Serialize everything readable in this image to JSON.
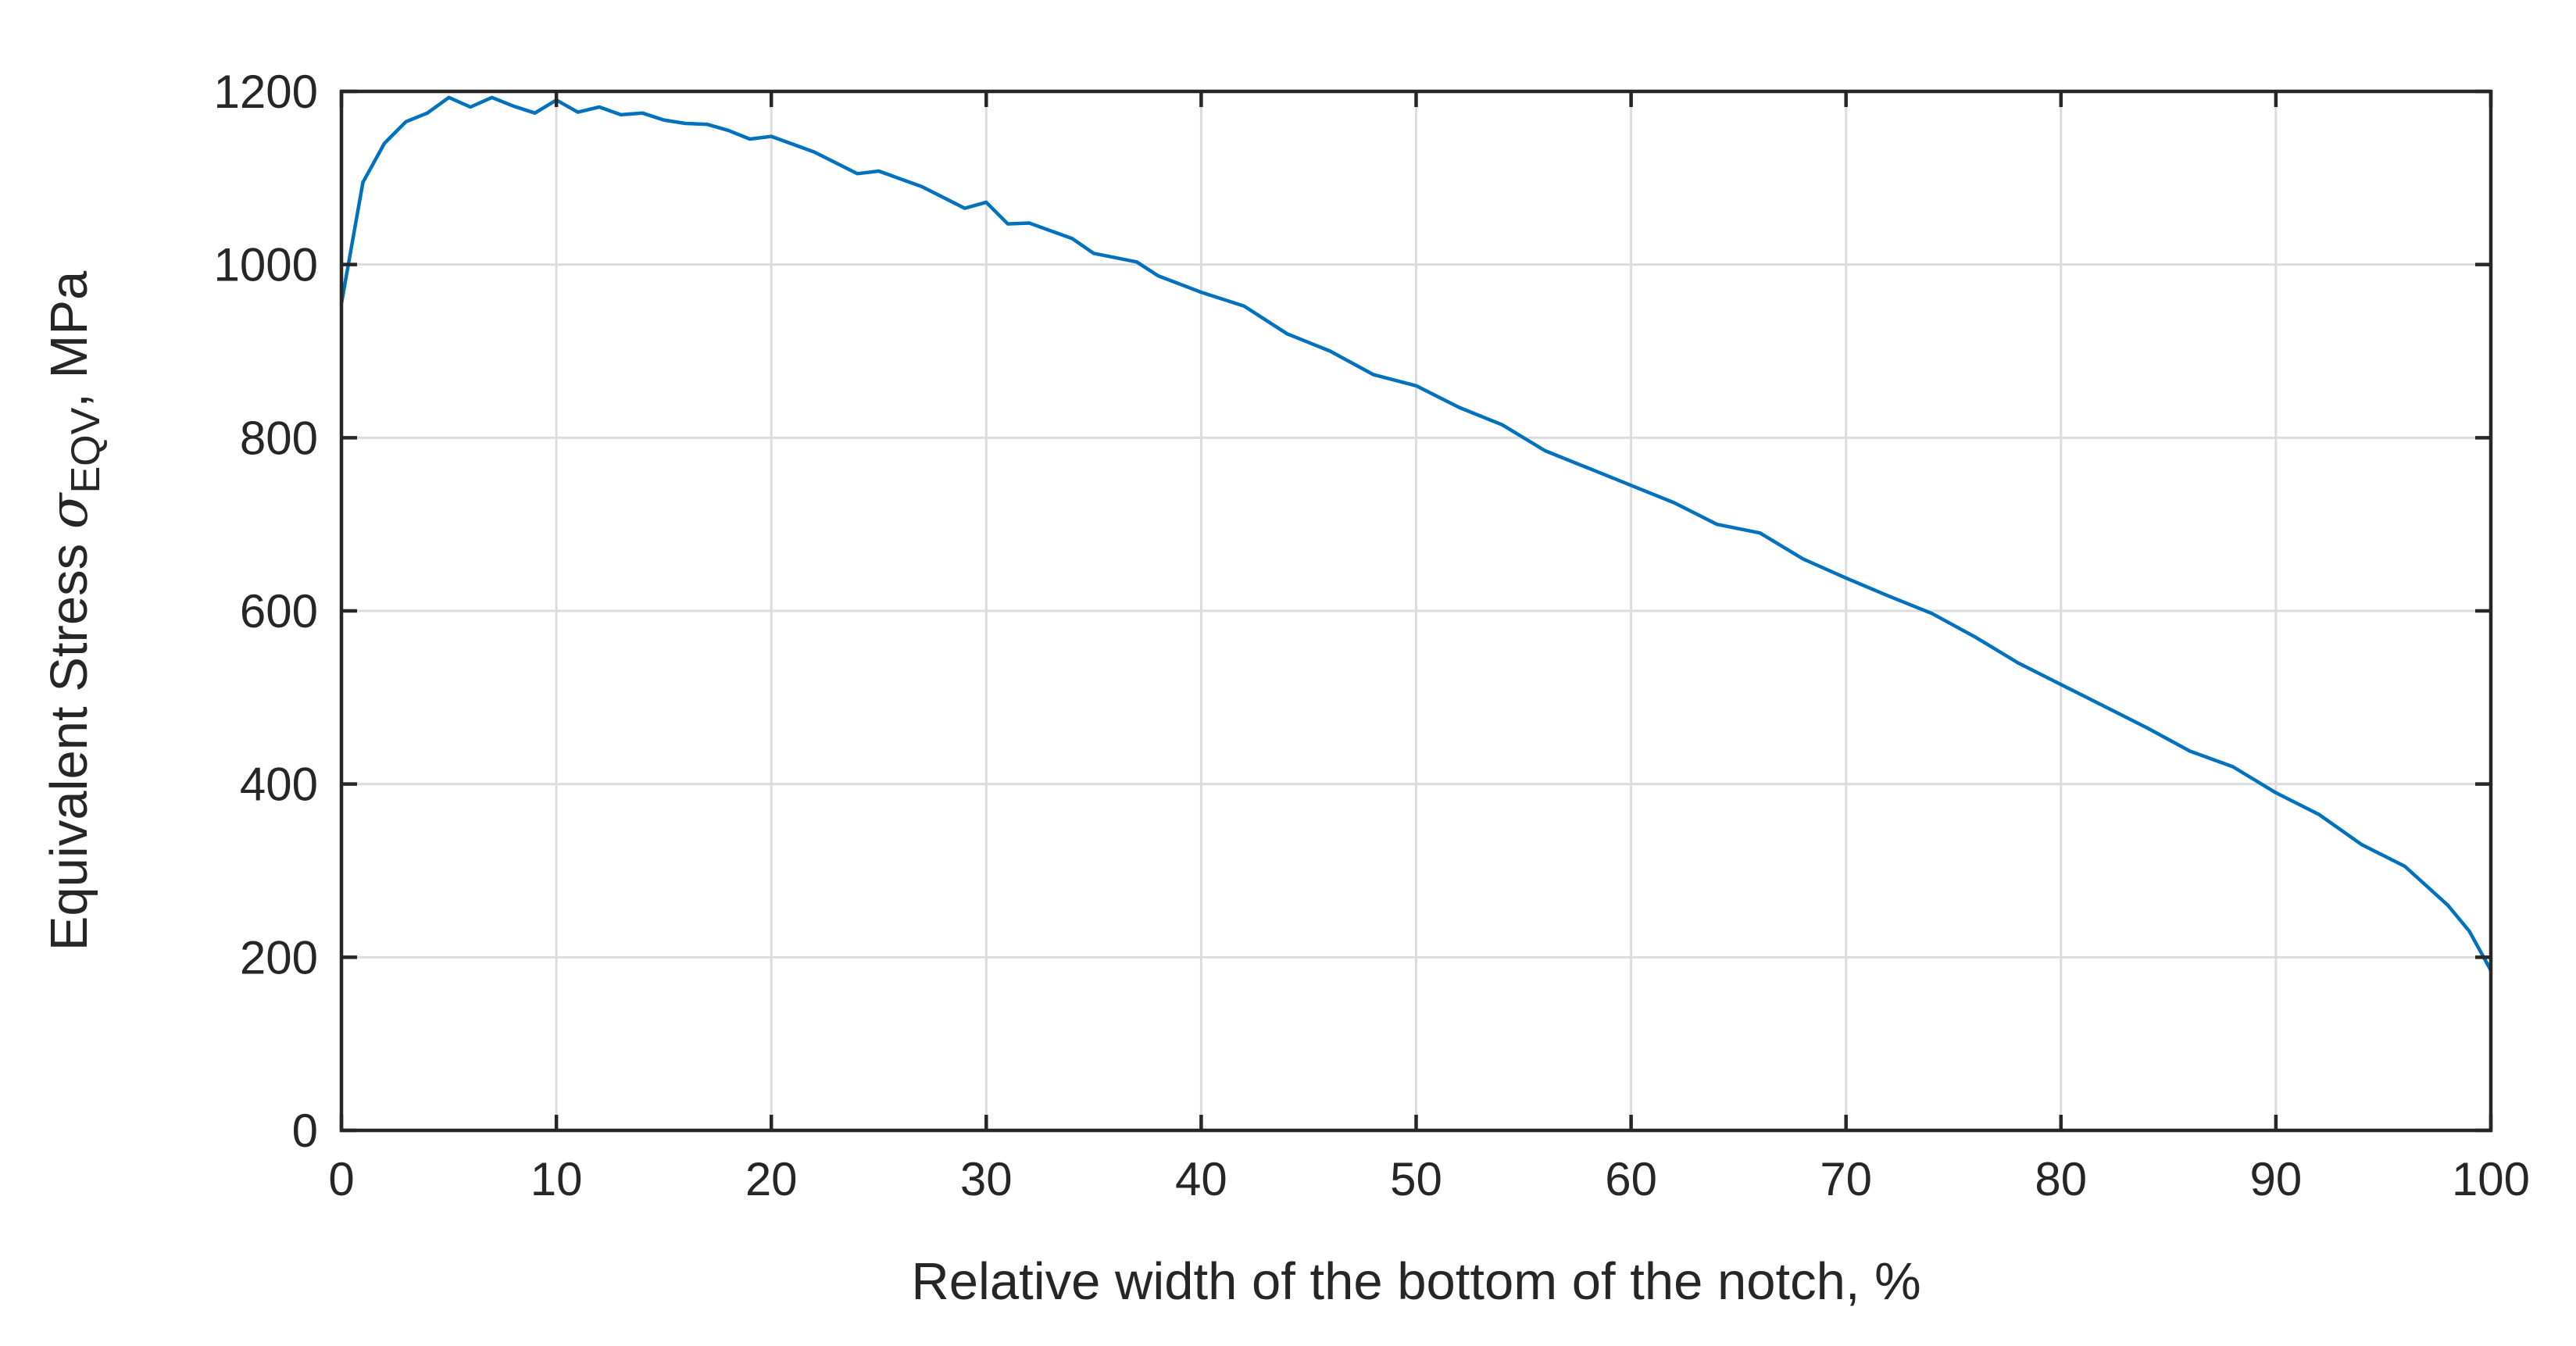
{
  "chart_data": {
    "type": "line",
    "xlabel": "Relative width of the bottom of the notch, %",
    "ylabel": {
      "main": "Equivalent Stress ",
      "symbol": "σ",
      "subscript": "EQV",
      "suffix": ", MPa"
    },
    "xlim": [
      0,
      100
    ],
    "ylim": [
      0,
      1200
    ],
    "xticks": [
      0,
      10,
      20,
      30,
      40,
      50,
      60,
      70,
      80,
      90,
      100
    ],
    "yticks": [
      0,
      200,
      400,
      600,
      800,
      1000,
      1200
    ],
    "grid": true,
    "series_color": "#0072bd",
    "series": [
      {
        "x": [
          0,
          1,
          2,
          3,
          4,
          5,
          6,
          7,
          8,
          9,
          10,
          11,
          12,
          13,
          14,
          15,
          16,
          17,
          18,
          19,
          20,
          22,
          24,
          25,
          27,
          29,
          30,
          31,
          32,
          34,
          35,
          37,
          38,
          40,
          42,
          44,
          46,
          48,
          50,
          52,
          54,
          56,
          58,
          60,
          62,
          64,
          66,
          68,
          70,
          72,
          74,
          76,
          78,
          80,
          82,
          84,
          86,
          88,
          90,
          92,
          94,
          96,
          98,
          99,
          100
        ],
        "y": [
          955,
          1095,
          1140,
          1165,
          1175,
          1193,
          1182,
          1193,
          1183,
          1175,
          1190,
          1176,
          1182,
          1173,
          1175,
          1167,
          1163,
          1162,
          1155,
          1145,
          1148,
          1130,
          1105,
          1108,
          1090,
          1065,
          1072,
          1047,
          1048,
          1030,
          1013,
          1003,
          987,
          968,
          952,
          920,
          900,
          873,
          860,
          835,
          815,
          785,
          765,
          745,
          725,
          700,
          690,
          660,
          638,
          617,
          597,
          570,
          540,
          515,
          490,
          465,
          438,
          420,
          390,
          365,
          330,
          305,
          260,
          230,
          185
        ]
      }
    ]
  }
}
